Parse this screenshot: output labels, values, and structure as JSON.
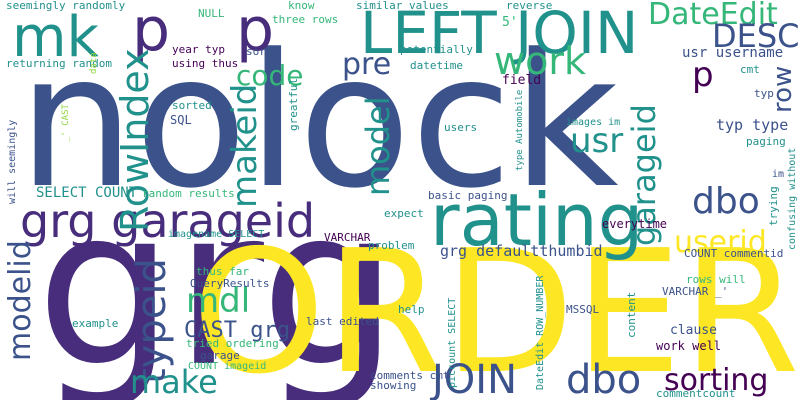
{
  "cloud": {
    "palette": {
      "navy": "#3b528b",
      "purple": "#472d7b",
      "teal": "#21918c",
      "green": "#35b779",
      "lime": "#90d743",
      "yellow": "#fde725",
      "dark": "#440154"
    },
    "words": [
      {
        "text": "nolock",
        "color": "navy",
        "rot": 0
      },
      {
        "text": "grg",
        "color": "purple",
        "rot": 0
      },
      {
        "text": "ORDER",
        "color": "yellow",
        "rot": 0
      },
      {
        "text": "rating",
        "color": "teal",
        "rot": 0
      },
      {
        "text": "grg garageid",
        "color": "purple",
        "rot": 0
      },
      {
        "text": "LEFT JOIN",
        "color": "teal",
        "rot": 0
      },
      {
        "text": "mk",
        "color": "teal",
        "rot": 0
      },
      {
        "text": "p",
        "color": "purple",
        "rot": 0
      },
      {
        "text": "p",
        "color": "purple",
        "rot": 0
      },
      {
        "text": "DateEdit",
        "color": "green",
        "rot": 0
      },
      {
        "text": "DESC",
        "color": "navy",
        "rot": 0
      },
      {
        "text": "RowIndex",
        "color": "teal",
        "rot": -90
      },
      {
        "text": "code",
        "color": "green",
        "rot": 0
      },
      {
        "text": "pre",
        "color": "navy",
        "rot": 0
      },
      {
        "text": "work",
        "color": "green",
        "rot": 0
      },
      {
        "text": "p",
        "color": "dark",
        "rot": 0
      },
      {
        "text": "row",
        "color": "navy",
        "rot": -90
      },
      {
        "text": "usr username",
        "color": "navy",
        "rot": 0
      },
      {
        "text": "makeid",
        "color": "teal",
        "rot": -90
      },
      {
        "text": "model",
        "color": "teal",
        "rot": -90
      },
      {
        "text": "usr",
        "color": "teal",
        "rot": 0
      },
      {
        "text": "garageid",
        "color": "teal",
        "rot": -90
      },
      {
        "text": "dbo",
        "color": "navy",
        "rot": 0
      },
      {
        "text": "userid",
        "color": "yellow",
        "rot": 0
      },
      {
        "text": "modelid",
        "color": "navy",
        "rot": -90
      },
      {
        "text": "typeid",
        "color": "navy",
        "rot": -90
      },
      {
        "text": "mdl",
        "color": "green",
        "rot": 0
      },
      {
        "text": "CAST grg",
        "color": "navy",
        "rot": 0
      },
      {
        "text": "make",
        "color": "teal",
        "rot": 0
      },
      {
        "text": "JOIN",
        "color": "navy",
        "rot": 0
      },
      {
        "text": "dbo",
        "color": "navy",
        "rot": 0
      },
      {
        "text": "sorting",
        "color": "dark",
        "rot": 0
      },
      {
        "text": "grg defaultthumbid",
        "color": "navy",
        "rot": 0
      },
      {
        "text": "typ type",
        "color": "navy",
        "rot": 0
      },
      {
        "text": "SELECT COUNT",
        "color": "teal",
        "rot": 0
      },
      {
        "text": "seemingly randomly",
        "color": "teal",
        "rot": 0
      },
      {
        "text": "returning random",
        "color": "teal",
        "rot": 0
      },
      {
        "text": "NULL",
        "color": "green",
        "rot": 0
      },
      {
        "text": "three rows",
        "color": "green",
        "rot": 0
      },
      {
        "text": "similar values",
        "color": "teal",
        "rot": 0
      },
      {
        "text": "reverse",
        "color": "teal",
        "rot": 0
      },
      {
        "text": "5'",
        "color": "green",
        "rot": 0
      },
      {
        "text": "know",
        "color": "green",
        "rot": 0
      },
      {
        "text": "sort",
        "color": "navy",
        "rot": 0
      },
      {
        "text": "potentially",
        "color": "teal",
        "rot": 0
      },
      {
        "text": "datetime",
        "color": "teal",
        "rot": 0
      },
      {
        "text": "field",
        "color": "dark",
        "rot": 0
      },
      {
        "text": "year typ",
        "color": "dark",
        "rot": 0
      },
      {
        "text": "using thus",
        "color": "dark",
        "rot": 0
      },
      {
        "text": "data",
        "color": "lime",
        "rot": -90
      },
      {
        "text": "_' CAST",
        "color": "lime",
        "rot": -90
      },
      {
        "text": "sorted",
        "color": "teal",
        "rot": 0
      },
      {
        "text": "SQL",
        "color": "navy",
        "rot": 0
      },
      {
        "text": "greatful",
        "color": "teal",
        "rot": -90
      },
      {
        "text": "users",
        "color": "teal",
        "rot": 0
      },
      {
        "text": "images im",
        "color": "teal",
        "rot": 0
      },
      {
        "text": "type Automobile",
        "color": "teal",
        "rot": -90
      },
      {
        "text": "cmt",
        "color": "teal",
        "rot": 0
      },
      {
        "text": "typ",
        "color": "navy",
        "rot": 0
      },
      {
        "text": "paging",
        "color": "teal",
        "rot": 0
      },
      {
        "text": "im",
        "color": "navy",
        "rot": 0
      },
      {
        "text": "will seemingly",
        "color": "navy",
        "rot": -90
      },
      {
        "text": "random results",
        "color": "green",
        "rot": 0
      },
      {
        "text": "basic paging",
        "color": "navy",
        "rot": 0
      },
      {
        "text": "expect",
        "color": "teal",
        "rot": 0
      },
      {
        "text": "everytime",
        "color": "dark",
        "rot": 0
      },
      {
        "text": "trying",
        "color": "teal",
        "rot": -90
      },
      {
        "text": "confusing without",
        "color": "teal",
        "rot": -90
      },
      {
        "text": "imagename SELECT",
        "color": "teal",
        "rot": 0
      },
      {
        "text": "VARCHAR",
        "color": "dark",
        "rot": 0
      },
      {
        "text": "problem",
        "color": "teal",
        "rot": 0
      },
      {
        "text": "COUNT commentid",
        "color": "navy",
        "rot": 0
      },
      {
        "text": "thus far",
        "color": "green",
        "rot": 0
      },
      {
        "text": "QueryResults",
        "color": "navy",
        "rot": 0
      },
      {
        "text": "rows will",
        "color": "green",
        "rot": 0
      },
      {
        "text": "VARCHAR _'",
        "color": "navy",
        "rot": 0
      },
      {
        "text": "example",
        "color": "teal",
        "rot": 0
      },
      {
        "text": "last edited",
        "color": "navy",
        "rot": 0
      },
      {
        "text": "help",
        "color": "teal",
        "rot": 0
      },
      {
        "text": "MSSQL",
        "color": "navy",
        "rot": 0
      },
      {
        "text": "piccount SELECT",
        "color": "teal",
        "rot": -90
      },
      {
        "text": "content",
        "color": "teal",
        "rot": -90
      },
      {
        "text": "clause",
        "color": "navy",
        "rot": 0
      },
      {
        "text": "work well",
        "color": "dark",
        "rot": 0
      },
      {
        "text": "tried ordering",
        "color": "green",
        "rot": 0
      },
      {
        "text": "garage",
        "color": "navy",
        "rot": 0
      },
      {
        "text": "COUNT imageid",
        "color": "green",
        "rot": 0
      },
      {
        "text": "comments cmt",
        "color": "navy",
        "rot": 0
      },
      {
        "text": "showing",
        "color": "navy",
        "rot": 0
      },
      {
        "text": "DateEdit ROW_NUMBER",
        "color": "teal",
        "rot": -90
      },
      {
        "text": "commentcount",
        "color": "teal",
        "rot": 0
      }
    ]
  }
}
